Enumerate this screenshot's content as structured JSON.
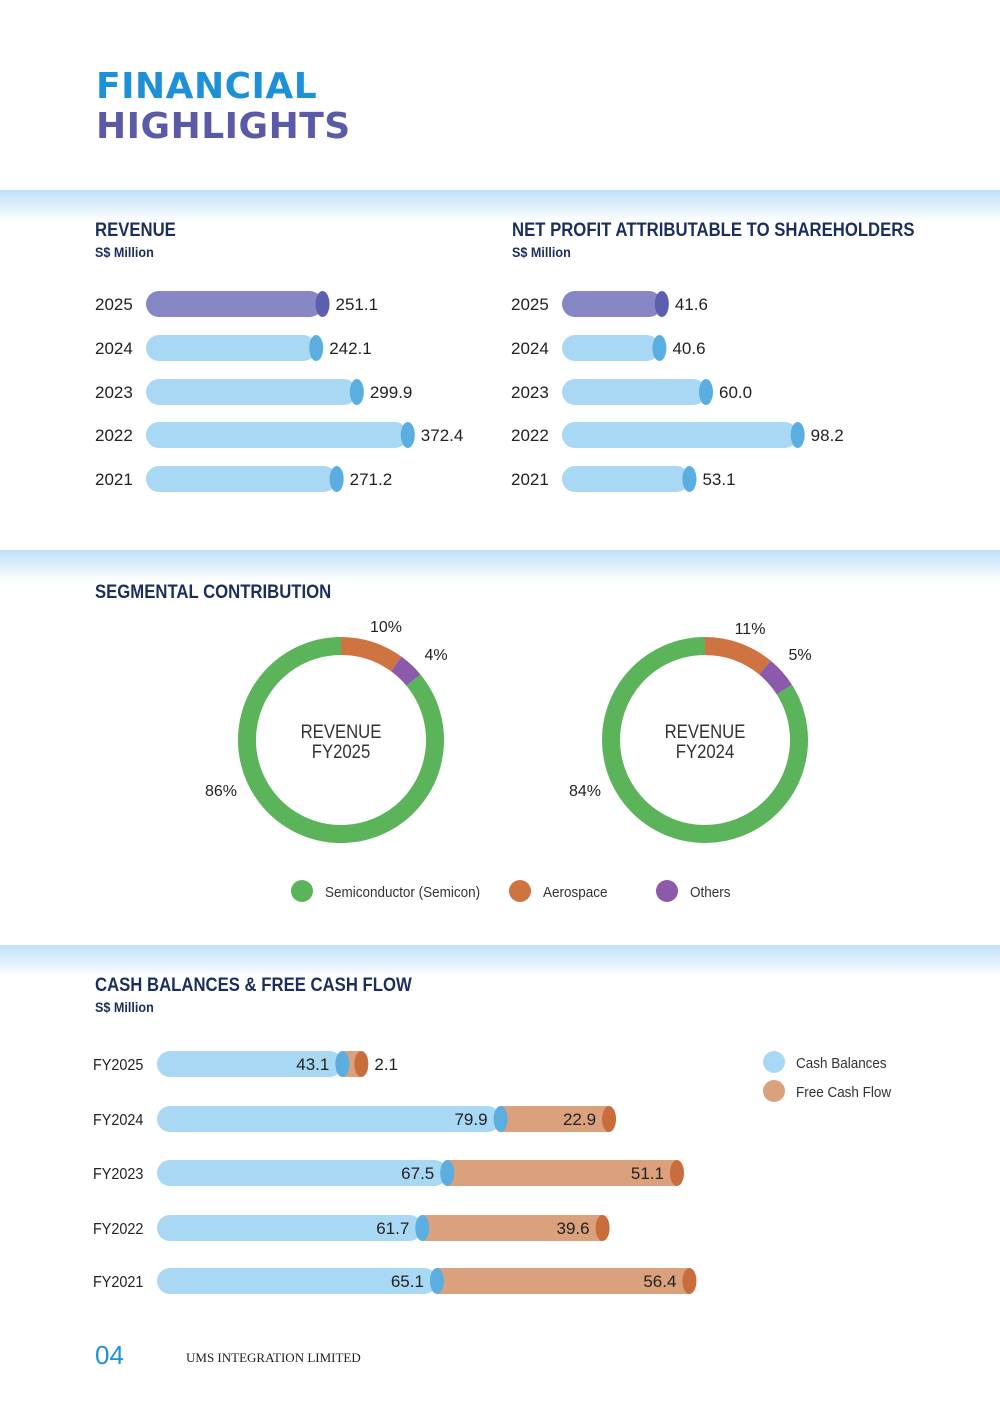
{
  "header": {
    "title_line1": "FINANCIAL",
    "title_line2": "HIGHLIGHTS"
  },
  "footer": {
    "page_number": "04",
    "company": "UMS INTEGRATION LIMITED"
  },
  "colors": {
    "purple_bar": "#8886c4",
    "purple_cap": "#5e5eae",
    "blue_bar": "#a8d8f4",
    "blue_cap": "#5aaee0",
    "orange_bar": "#dba17c",
    "orange_cap": "#c96d3c",
    "semicon": "#5bb35a",
    "aerospace": "#cf7340",
    "others": "#8c5aab"
  },
  "chart_data": [
    {
      "type": "bar",
      "orientation": "horizontal",
      "title": "REVENUE",
      "subtitle": "S$ Million",
      "categories": [
        "2025",
        "2024",
        "2023",
        "2022",
        "2021"
      ],
      "values": [
        251.1,
        242.1,
        299.9,
        372.4,
        271.2
      ],
      "highlight": "2025"
    },
    {
      "type": "bar",
      "orientation": "horizontal",
      "title": "NET PROFIT ATTRIBUTABLE TO SHAREHOLDERS",
      "subtitle": "S$ Million",
      "categories": [
        "2025",
        "2024",
        "2023",
        "2022",
        "2021"
      ],
      "values": [
        41.6,
        40.6,
        60.0,
        98.2,
        53.1
      ],
      "highlight": "2025"
    },
    {
      "type": "pie",
      "donut": true,
      "section_title": "SEGMENTAL CONTRIBUTION",
      "center_label": [
        "REVENUE",
        "FY2025"
      ],
      "slices": [
        {
          "name": "Aerospace",
          "value": 10,
          "label": "10%"
        },
        {
          "name": "Others",
          "value": 4,
          "label": "4%"
        },
        {
          "name": "Semiconductor (Semicon)",
          "value": 86,
          "label": "86%"
        }
      ]
    },
    {
      "type": "pie",
      "donut": true,
      "center_label": [
        "REVENUE",
        "FY2024"
      ],
      "slices": [
        {
          "name": "Aerospace",
          "value": 11,
          "label": "11%"
        },
        {
          "name": "Others",
          "value": 5,
          "label": "5%"
        },
        {
          "name": "Semiconductor (Semicon)",
          "value": 84,
          "label": "84%"
        }
      ]
    },
    {
      "type": "bar",
      "orientation": "horizontal",
      "stacked": true,
      "title": "CASH BALANCES & FREE CASH FLOW",
      "subtitle": "S$ Million",
      "categories": [
        "FY2025",
        "FY2024",
        "FY2023",
        "FY2022",
        "FY2021"
      ],
      "series": [
        {
          "name": "Cash Balances",
          "values": [
            43.1,
            79.9,
            67.5,
            61.7,
            65.1
          ]
        },
        {
          "name": "Free Cash Flow",
          "values": [
            2.1,
            22.9,
            51.1,
            39.6,
            56.4
          ]
        }
      ],
      "legend": "top-right"
    }
  ],
  "legend_segments": [
    "Semiconductor (Semicon)",
    "Aerospace",
    "Others"
  ]
}
